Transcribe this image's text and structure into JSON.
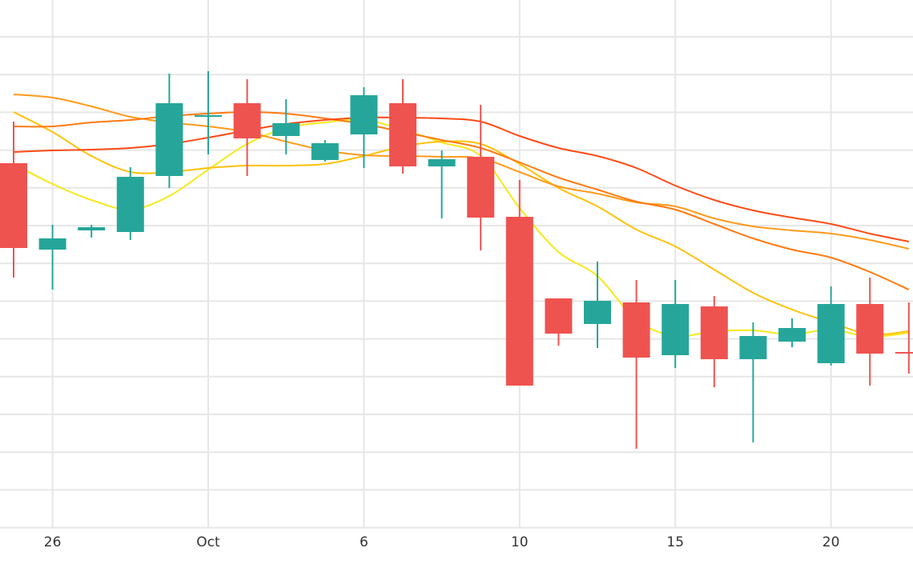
{
  "chart_data": {
    "type": "candlestick",
    "title": "",
    "xlabel": "",
    "ylabel": "",
    "grid": true,
    "y_axis_labels_visible": false,
    "tick_labels": [
      {
        "index": 1,
        "label": "26"
      },
      {
        "index": 5,
        "label": "Oct"
      },
      {
        "index": 9,
        "label": "6"
      },
      {
        "index": 13,
        "label": "10"
      },
      {
        "index": 17,
        "label": "15"
      },
      {
        "index": 21,
        "label": "20"
      }
    ],
    "xlim": [
      -0.35,
      23.1
    ],
    "ylim": [
      4,
      70
    ],
    "colors": {
      "up": "#26a69a",
      "down": "#ef5350",
      "grid": "#e6e6e6"
    },
    "candles": [
      {
        "o": 49.6,
        "h": 54.8,
        "l": 35.3,
        "c": 39.0
      },
      {
        "o": 38.8,
        "h": 41.9,
        "l": 33.8,
        "c": 40.2
      },
      {
        "o": 41.2,
        "h": 41.9,
        "l": 40.3,
        "c": 41.6
      },
      {
        "o": 41.0,
        "h": 49.1,
        "l": 40.0,
        "c": 47.9
      },
      {
        "o": 48.0,
        "h": 60.8,
        "l": 46.5,
        "c": 57.1
      },
      {
        "o": 55.5,
        "h": 61.1,
        "l": 50.7,
        "c": 55.6
      },
      {
        "o": 57.1,
        "h": 60.1,
        "l": 48.0,
        "c": 52.7
      },
      {
        "o": 53.0,
        "h": 57.6,
        "l": 50.7,
        "c": 54.6
      },
      {
        "o": 50.0,
        "h": 52.5,
        "l": 49.8,
        "c": 52.1
      },
      {
        "o": 53.2,
        "h": 59.1,
        "l": 49.0,
        "c": 58.1
      },
      {
        "o": 57.1,
        "h": 60.1,
        "l": 48.3,
        "c": 49.2
      },
      {
        "o": 49.2,
        "h": 51.2,
        "l": 42.7,
        "c": 50.1
      },
      {
        "o": 50.4,
        "h": 56.9,
        "l": 38.7,
        "c": 42.8
      },
      {
        "o": 42.9,
        "h": 47.5,
        "l": 21.8,
        "c": 21.8
      },
      {
        "o": 32.7,
        "h": 32.7,
        "l": 26.8,
        "c": 28.3
      },
      {
        "o": 29.5,
        "h": 37.3,
        "l": 26.5,
        "c": 32.4
      },
      {
        "o": 32.2,
        "h": 35.0,
        "l": 13.9,
        "c": 25.3
      },
      {
        "o": 25.6,
        "h": 35.0,
        "l": 24.0,
        "c": 32.0
      },
      {
        "o": 31.7,
        "h": 33.0,
        "l": 21.6,
        "c": 25.1
      },
      {
        "o": 25.1,
        "h": 29.7,
        "l": 14.7,
        "c": 28.0
      },
      {
        "o": 27.3,
        "h": 30.2,
        "l": 26.6,
        "c": 29.0
      },
      {
        "o": 24.6,
        "h": 34.2,
        "l": 24.3,
        "c": 32.0
      },
      {
        "o": 32.0,
        "h": 35.3,
        "l": 21.8,
        "c": 25.8
      },
      {
        "o": 26.0,
        "h": 32.2,
        "l": 23.3,
        "c": 25.9
      }
    ],
    "series": [
      {
        "name": "ma-yellow",
        "color": "#f7e81a",
        "values": [
          49.5,
          47,
          45,
          43.8,
          45.5,
          48.8,
          52,
          54,
          54.7,
          55,
          53.8,
          52.2,
          50.5,
          44,
          38.5,
          35.5,
          30,
          28,
          28.6,
          28.7,
          28.2,
          28.8,
          27.9,
          28.4
        ]
      },
      {
        "name": "ma-gold",
        "color": "#ffc107",
        "values": [
          56,
          53.5,
          50.5,
          48.5,
          48.5,
          49,
          49.3,
          49.3,
          49.5,
          50.5,
          51.7,
          52.3,
          52,
          49.5,
          46.5,
          44.2,
          41.3,
          39.2,
          36.3,
          33.4,
          31.3,
          29.7,
          28.2,
          28.6
        ]
      },
      {
        "name": "ma-orange",
        "color": "#ff9a1a",
        "values": [
          58.2,
          57.8,
          56.7,
          55.4,
          54.7,
          54.2,
          53.5,
          52.3,
          51.2,
          50.6,
          50.5,
          50.4,
          50.2,
          48.5,
          46.7,
          45.8,
          44.7,
          44.2,
          42.7,
          41.7,
          41.2,
          40.8,
          40,
          38.9
        ]
      },
      {
        "name": "ma-dark-orange",
        "color": "#ff7a10",
        "values": [
          54.2,
          54.2,
          54.7,
          55,
          55.5,
          55.8,
          56,
          55.8,
          55.2,
          54.5,
          53.5,
          52.5,
          51.5,
          49.7,
          47.8,
          46.3,
          44.8,
          43.8,
          42,
          40.2,
          38.8,
          37.8,
          36,
          33.8
        ]
      },
      {
        "name": "ma-red",
        "color": "#ff4a14",
        "values": [
          51,
          51.2,
          51.3,
          51.5,
          52,
          52.8,
          53.7,
          54.5,
          55,
          55.3,
          55.3,
          55.2,
          54.8,
          53,
          51.5,
          50.5,
          49,
          46.8,
          45,
          43.7,
          42.8,
          42,
          40.8,
          39.8
        ]
      }
    ]
  }
}
